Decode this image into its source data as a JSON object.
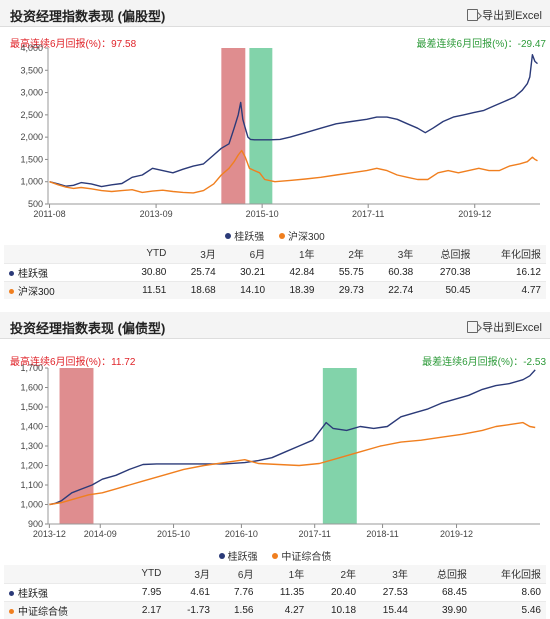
{
  "colors": {
    "manager": "#2b3a78",
    "benchmark": "#f07f1f",
    "max_band": "#d9797b",
    "min_band": "#6ccb9b",
    "ann_max": "#e0242a",
    "ann_min": "#2e9b3a"
  },
  "export_label": "导出到Excel",
  "export_icon": "export-icon",
  "panels": [
    {
      "title": "投资经理指数表现 (偏股型)",
      "max_annotation": "最高连续6月回报(%)：97.58",
      "min_annotation": "最差连续6月回报(%)：-29.47",
      "legend": [
        "桂跃强",
        "沪深300"
      ],
      "table_header": [
        "",
        "YTD",
        "3月",
        "6月",
        "1年",
        "2年",
        "3年",
        "总回报",
        "年化回报"
      ],
      "table_rows": [
        {
          "name": "桂跃强",
          "values": [
            "30.80",
            "25.74",
            "30.21",
            "42.84",
            "55.75",
            "60.38",
            "270.38",
            "16.12"
          ]
        },
        {
          "name": "沪深300",
          "values": [
            "11.51",
            "18.68",
            "14.10",
            "18.39",
            "29.73",
            "22.74",
            "50.45",
            "4.77"
          ]
        }
      ]
    },
    {
      "title": "投资经理指数表现 (偏债型)",
      "max_annotation": "最高连续6月回报(%)：11.72",
      "min_annotation": "最差连续6月回报(%)：-2.53",
      "legend": [
        "桂跃强",
        "中证综合债"
      ],
      "table_header": [
        "",
        "YTD",
        "3月",
        "6月",
        "1年",
        "2年",
        "3年",
        "总回报",
        "年化回报"
      ],
      "table_rows": [
        {
          "name": "桂跃强",
          "values": [
            "7.95",
            "4.61",
            "7.76",
            "11.35",
            "20.40",
            "27.53",
            "68.45",
            "8.60"
          ]
        },
        {
          "name": "中证综合债",
          "values": [
            "2.17",
            "-1.73",
            "1.56",
            "4.27",
            "10.18",
            "15.44",
            "39.90",
            "5.46"
          ]
        }
      ]
    }
  ],
  "chart_data": [
    {
      "type": "line",
      "ylim": [
        500,
        4000
      ],
      "yticks": [
        "500",
        "1,000",
        "1,500",
        "2,000",
        "2,500",
        "3,000",
        "3,500",
        "4,000"
      ],
      "xlim": [
        2011.55,
        2021.2
      ],
      "xticks": [
        {
          "label": "2011-08",
          "x": 2011.58
        },
        {
          "label": "2013-09",
          "x": 2013.67
        },
        {
          "label": "2015-10",
          "x": 2015.75
        },
        {
          "label": "2017-11",
          "x": 2017.83
        },
        {
          "label": "2019-12",
          "x": 2019.92
        }
      ],
      "max_band": [
        2014.95,
        2015.42
      ],
      "min_band": [
        2015.5,
        2015.95
      ],
      "series": [
        {
          "name": "桂跃强",
          "x": [
            2011.58,
            2011.75,
            2011.9,
            2012.05,
            2012.2,
            2012.4,
            2012.6,
            2012.8,
            2013.0,
            2013.2,
            2013.4,
            2013.6,
            2013.8,
            2014.0,
            2014.2,
            2014.4,
            2014.6,
            2014.8,
            2014.95,
            2015.1,
            2015.2,
            2015.28,
            2015.33,
            2015.37,
            2015.42,
            2015.47,
            2015.52,
            2015.6,
            2015.7,
            2015.9,
            2016.1,
            2016.3,
            2016.6,
            2016.9,
            2017.2,
            2017.5,
            2017.8,
            2018.0,
            2018.2,
            2018.4,
            2018.6,
            2018.8,
            2018.95,
            2019.1,
            2019.3,
            2019.5,
            2019.7,
            2019.9,
            2020.1,
            2020.3,
            2020.5,
            2020.7,
            2020.85,
            2020.95,
            2021.0,
            2021.05,
            2021.1,
            2021.15
          ],
          "values": [
            1000,
            950,
            900,
            920,
            980,
            950,
            890,
            930,
            960,
            1100,
            1150,
            1300,
            1250,
            1200,
            1280,
            1350,
            1400,
            1600,
            1750,
            1850,
            2200,
            2500,
            2780,
            2400,
            2200,
            2000,
            1950,
            1940,
            1940,
            1940,
            1950,
            2000,
            2100,
            2200,
            2300,
            2350,
            2400,
            2450,
            2450,
            2400,
            2300,
            2200,
            2100,
            2200,
            2350,
            2450,
            2500,
            2550,
            2600,
            2700,
            2800,
            2900,
            3050,
            3200,
            3350,
            3850,
            3700,
            3650
          ]
        },
        {
          "name": "沪深300",
          "x": [
            2011.58,
            2011.75,
            2011.9,
            2012.05,
            2012.2,
            2012.4,
            2012.6,
            2012.8,
            2013.0,
            2013.2,
            2013.4,
            2013.6,
            2013.8,
            2014.0,
            2014.2,
            2014.4,
            2014.6,
            2014.8,
            2014.95,
            2015.1,
            2015.2,
            2015.28,
            2015.35,
            2015.42,
            2015.5,
            2015.6,
            2015.7,
            2015.8,
            2016.0,
            2016.3,
            2016.6,
            2016.9,
            2017.2,
            2017.5,
            2017.8,
            2018.0,
            2018.2,
            2018.4,
            2018.6,
            2018.8,
            2019.0,
            2019.2,
            2019.4,
            2019.6,
            2019.8,
            2020.0,
            2020.2,
            2020.4,
            2020.6,
            2020.8,
            2020.95,
            2021.05,
            2021.1,
            2021.15
          ],
          "values": [
            1000,
            930,
            880,
            850,
            870,
            840,
            800,
            780,
            800,
            820,
            760,
            790,
            810,
            780,
            760,
            750,
            800,
            950,
            1150,
            1300,
            1450,
            1600,
            1700,
            1550,
            1300,
            1250,
            1200,
            1050,
            1000,
            1030,
            1060,
            1100,
            1150,
            1200,
            1250,
            1300,
            1250,
            1150,
            1100,
            1050,
            1050,
            1200,
            1250,
            1200,
            1250,
            1300,
            1250,
            1250,
            1350,
            1400,
            1450,
            1550,
            1500,
            1470
          ]
        }
      ]
    },
    {
      "type": "line",
      "ylim": [
        900,
        1700
      ],
      "yticks": [
        "900",
        "1,000",
        "1,100",
        "1,200",
        "1,300",
        "1,400",
        "1,500",
        "1,600",
        "1,700"
      ],
      "xlim": [
        2013.9,
        2021.15
      ],
      "xticks": [
        {
          "label": "2013-12",
          "x": 2013.92
        },
        {
          "label": "2014-09",
          "x": 2014.67
        },
        {
          "label": "2015-10",
          "x": 2015.75
        },
        {
          "label": "2016-10",
          "x": 2016.75
        },
        {
          "label": "2017-11",
          "x": 2017.83
        },
        {
          "label": "2018-11",
          "x": 2018.83
        },
        {
          "label": "2019-12",
          "x": 2019.92
        }
      ],
      "max_band": [
        2014.07,
        2014.57
      ],
      "min_band": [
        2017.95,
        2018.45
      ],
      "series": [
        {
          "name": "桂跃强",
          "x": [
            2013.92,
            2014.0,
            2014.1,
            2014.25,
            2014.4,
            2014.55,
            2014.7,
            2014.9,
            2015.1,
            2015.3,
            2015.5,
            2015.7,
            2015.9,
            2016.2,
            2016.5,
            2016.8,
            2017.0,
            2017.2,
            2017.4,
            2017.6,
            2017.8,
            2018.0,
            2018.1,
            2018.3,
            2018.5,
            2018.7,
            2018.9,
            2019.1,
            2019.3,
            2019.5,
            2019.7,
            2019.9,
            2020.1,
            2020.3,
            2020.5,
            2020.7,
            2020.9,
            2021.0,
            2021.08
          ],
          "values": [
            1000,
            1005,
            1020,
            1060,
            1080,
            1100,
            1130,
            1150,
            1180,
            1205,
            1208,
            1208,
            1208,
            1208,
            1208,
            1215,
            1225,
            1240,
            1270,
            1300,
            1330,
            1420,
            1390,
            1380,
            1400,
            1390,
            1400,
            1450,
            1470,
            1490,
            1520,
            1540,
            1560,
            1590,
            1610,
            1620,
            1640,
            1660,
            1690
          ]
        },
        {
          "name": "中证综合债",
          "x": [
            2013.92,
            2014.1,
            2014.3,
            2014.5,
            2014.7,
            2014.9,
            2015.1,
            2015.3,
            2015.5,
            2015.7,
            2015.9,
            2016.2,
            2016.5,
            2016.8,
            2017.0,
            2017.3,
            2017.6,
            2017.9,
            2018.2,
            2018.5,
            2018.8,
            2019.1,
            2019.4,
            2019.7,
            2020.0,
            2020.3,
            2020.5,
            2020.7,
            2020.9,
            2021.0,
            2021.08
          ],
          "values": [
            1000,
            1010,
            1030,
            1050,
            1060,
            1080,
            1100,
            1120,
            1140,
            1160,
            1180,
            1200,
            1215,
            1230,
            1210,
            1205,
            1200,
            1210,
            1240,
            1270,
            1300,
            1320,
            1330,
            1345,
            1360,
            1380,
            1400,
            1410,
            1420,
            1400,
            1395
          ]
        }
      ]
    }
  ]
}
